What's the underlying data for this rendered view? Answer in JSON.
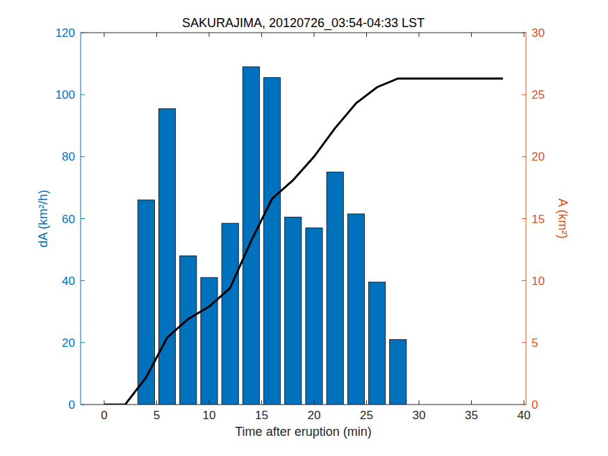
{
  "chart_data": {
    "type": "bar",
    "title": "SAKURAJIMA, 20120726_03:54-04:33 LST",
    "x_label": "Time after eruption (min)",
    "y_label": "dA (km²/h)",
    "y2_label": "A (km²)",
    "xlim": [
      -2.25,
      40.2
    ],
    "xticks": [
      0,
      5,
      10,
      15,
      20,
      25,
      30,
      35,
      40
    ],
    "ylim": [
      0,
      120
    ],
    "yticks": [
      0,
      20,
      40,
      60,
      80,
      100,
      120
    ],
    "y2lim": [
      0,
      30
    ],
    "y2ticks": [
      0,
      5,
      10,
      15,
      20,
      25,
      30
    ],
    "grid": false,
    "series": [
      {
        "type": "bar",
        "color": "#0072BD",
        "x": [
          4,
          6,
          8,
          10,
          12,
          14,
          16,
          18,
          20,
          22,
          24,
          26,
          28
        ],
        "values": [
          66,
          95.5,
          48,
          41,
          58.5,
          109,
          105.5,
          60.5,
          57,
          75,
          61.5,
          39.5,
          21
        ]
      },
      {
        "type": "line",
        "color": "#000000",
        "axis": "y2",
        "line_style": "solid",
        "x": [
          0,
          2,
          4,
          6,
          8,
          10,
          12,
          14,
          16,
          18,
          20,
          22,
          24,
          26,
          28,
          30,
          32,
          34,
          36,
          38
        ],
        "values": [
          0,
          0,
          2.2,
          5.4,
          6.9,
          7.9,
          9.4,
          13.2,
          16.6,
          18.1,
          20,
          22.3,
          24.3,
          25.6,
          26.3,
          26.3,
          26.3,
          26.3,
          26.3,
          26.3
        ]
      }
    ]
  }
}
